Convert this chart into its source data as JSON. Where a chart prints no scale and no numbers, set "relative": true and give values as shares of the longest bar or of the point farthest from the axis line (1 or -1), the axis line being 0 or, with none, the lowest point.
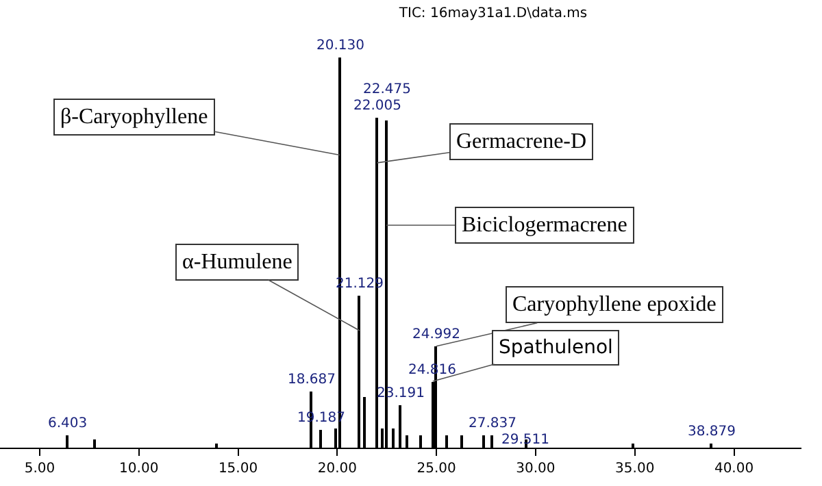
{
  "chart_data": {
    "type": "bar",
    "title": "TIC: 16may31a1.D\\data.ms",
    "relative": true,
    "color": "#000000",
    "x": [
      6.403,
      7.75,
      13.95,
      18.687,
      19.187,
      19.95,
      20.13,
      21.129,
      21.35,
      22.005,
      22.3,
      22.475,
      22.8,
      23.191,
      23.5,
      24.2,
      24.816,
      24.992,
      25.5,
      26.3,
      27.4,
      27.837,
      29.511,
      34.9,
      38.879
    ],
    "values": [
      0.03,
      0.02,
      0.01,
      0.144,
      0.045,
      0.05,
      1.0,
      0.39,
      0.13,
      0.846,
      0.05,
      0.84,
      0.05,
      0.11,
      0.03,
      0.03,
      0.17,
      0.26,
      0.03,
      0.03,
      0.03,
      0.03,
      0.02,
      0.01,
      0.01
    ],
    "xlim": [
      3.0,
      43.4
    ],
    "xticks": [
      {
        "value": 5,
        "label": "5.00"
      },
      {
        "value": 10,
        "label": "10.00"
      },
      {
        "value": 15,
        "label": "15.00"
      },
      {
        "value": 20,
        "label": "20.00"
      },
      {
        "value": 25,
        "label": "25.00"
      },
      {
        "value": 30,
        "label": "30.00"
      },
      {
        "value": 35,
        "label": "35.00"
      },
      {
        "value": 40,
        "label": "40.00"
      }
    ],
    "tick_labels": "x",
    "annotations": [
      {
        "text": "β-Caryophyllene",
        "x": 20.13,
        "y": 0.75
      },
      {
        "text": "Germacrene-D",
        "x": 22.005,
        "y": 0.73
      },
      {
        "text": "Biciclogermacrene",
        "x": 22.475,
        "y": 0.57
      },
      {
        "text": "α-Humulene",
        "x": 21.129,
        "y": 0.3
      },
      {
        "text": "Caryophyllene epoxide",
        "x": 24.992,
        "y": 0.26
      },
      {
        "text": "Spathulenol",
        "x": 24.816,
        "y": 0.17
      },
      {
        "text": "20.130",
        "x": 20.13,
        "y": 1.0
      },
      {
        "text": "22.005",
        "x": 22.005,
        "y": 0.846
      },
      {
        "text": "22.475",
        "x": 22.475,
        "y": 0.84
      },
      {
        "text": "21.129",
        "x": 21.129,
        "y": 0.39
      },
      {
        "text": "24.992",
        "x": 24.992,
        "y": 0.26
      },
      {
        "text": "24.816",
        "x": 24.816,
        "y": 0.17
      },
      {
        "text": "18.687",
        "x": 18.687,
        "y": 0.144
      },
      {
        "text": "23.191",
        "x": 23.191,
        "y": 0.11
      },
      {
        "text": "19.187",
        "x": 19.187,
        "y": 0.045
      },
      {
        "text": "6.403",
        "x": 6.403,
        "y": 0.03
      },
      {
        "text": "27.837",
        "x": 27.837,
        "y": 0.03
      },
      {
        "text": "29.511",
        "x": 29.511,
        "y": 0.02
      },
      {
        "text": "38.879",
        "x": 38.879,
        "y": 0.01
      }
    ]
  }
}
